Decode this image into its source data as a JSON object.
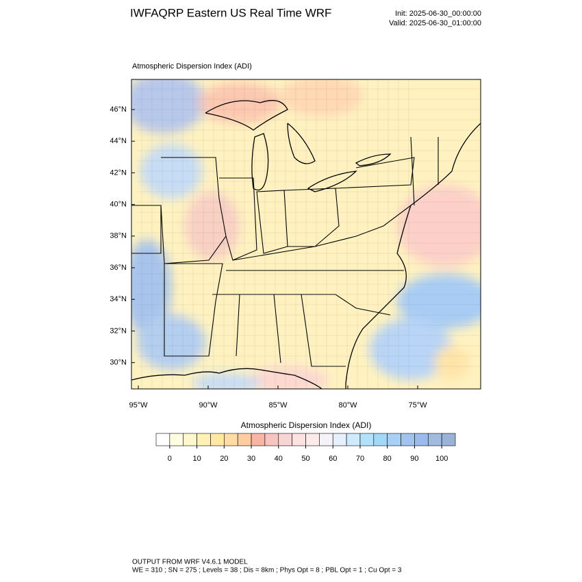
{
  "header": {
    "title": "IWFAQRP Eastern US Real Time WRF",
    "init": "Init: 2025-06-30_00:00:00",
    "valid": "Valid: 2025-06-30_01:00:00"
  },
  "map": {
    "label": "Atmospheric Dispersion Index   (ADI)",
    "lat_labels": [
      "46°N",
      "44°N",
      "42°N",
      "40°N",
      "38°N",
      "36°N",
      "34°N",
      "32°N",
      "30°N"
    ],
    "lon_labels": [
      "95°W",
      "90°W",
      "85°W",
      "80°W",
      "75°W"
    ]
  },
  "colorbar": {
    "title": "Atmospheric Dispersion Index  (ADI)",
    "ticks": [
      0,
      10,
      20,
      30,
      40,
      50,
      60,
      70,
      80,
      90,
      100
    ],
    "colors": [
      "#ffffff",
      "#fffde2",
      "#fff8cc",
      "#fff0b4",
      "#ffe8a4",
      "#ffdca4",
      "#ffcca0",
      "#f8b4a4",
      "#f8c4c0",
      "#f8d4d2",
      "#fce2e0",
      "#fdeaea",
      "#f6f2fa",
      "#e6f0fe",
      "#cdebfc",
      "#b0e2fc",
      "#a2d8f8",
      "#a8d0f6",
      "#a2c2f0",
      "#9cbaec",
      "#a2badf",
      "#9ab2d8"
    ]
  },
  "footer": {
    "line1": "OUTPUT FROM WRF V4.6.1 MODEL",
    "line2": "WE = 310 ; SN = 275 ; Levels = 38 ; Dis = 8km ; Phys Opt = 8 ; PBL Opt = 1 ; Cu Opt = 3"
  }
}
